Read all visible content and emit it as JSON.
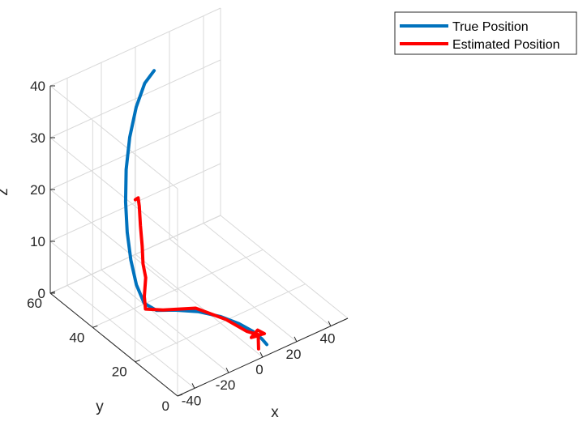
{
  "chart_data": {
    "type": "line3d",
    "xlabel": "x",
    "ylabel": "y",
    "zlabel": "z",
    "xlim": [
      -50,
      50
    ],
    "ylim": [
      0,
      60
    ],
    "zlim": [
      0,
      40
    ],
    "xticks": [
      -40,
      -20,
      0,
      20,
      40
    ],
    "yticks": [
      0,
      20,
      40,
      60
    ],
    "zticks": [
      0,
      10,
      20,
      30,
      40
    ],
    "grid": true,
    "legend_position": "top-right",
    "colors": {
      "true": "#0072BD",
      "estimated": "#FF0000",
      "grid": "#d9d9d9",
      "axis": "#262626"
    },
    "series": [
      {
        "name": "True Position",
        "color": "#0072BD",
        "points": [
          [
            7.4,
            4.0,
            0.0
          ],
          [
            7.0,
            6.0,
            0.5
          ],
          [
            4.7,
            8.4,
            1.5
          ],
          [
            0.4,
            11.5,
            2.6
          ],
          [
            -5.7,
            15.4,
            3.6
          ],
          [
            -13.2,
            19.9,
            4.2
          ],
          [
            -21.0,
            24.6,
            4.1
          ],
          [
            -26.8,
            28.6,
            3.6
          ],
          [
            -30.0,
            31.8,
            4.4
          ],
          [
            -30.6,
            35.0,
            7.0
          ],
          [
            -29.2,
            38.7,
            10.3
          ],
          [
            -26.5,
            42.6,
            14.0
          ],
          [
            -22.6,
            46.5,
            18.0
          ],
          [
            -17.5,
            50.3,
            22.2
          ],
          [
            -11.3,
            53.6,
            26.4
          ],
          [
            -4.0,
            56.4,
            30.2
          ],
          [
            3.5,
            58.4,
            33.0
          ],
          [
            10.5,
            59.6,
            34.0
          ]
        ]
      },
      {
        "name": "Estimated Position",
        "color": "#FF0000",
        "points": [
          [
            2.3,
            3.8,
            0.0
          ],
          [
            3.0,
            4.5,
            2.2
          ],
          [
            3.2,
            7.9,
            0.7
          ],
          [
            4.4,
            5.9,
            2.6
          ],
          [
            7.0,
            4.8,
            1.9
          ],
          [
            6.2,
            6.5,
            1.2
          ],
          [
            2.2,
            9.2,
            1.6
          ],
          [
            -4.2,
            13.9,
            3.3
          ],
          [
            -13.7,
            20.6,
            4.7
          ],
          [
            -24.4,
            27.4,
            3.7
          ],
          [
            -29.6,
            31.5,
            3.3
          ],
          [
            -28.3,
            33.1,
            5.0
          ],
          [
            -25.5,
            34.7,
            7.7
          ],
          [
            -24.7,
            36.6,
            9.6
          ],
          [
            -24.3,
            37.3,
            12.7
          ],
          [
            -24.2,
            38.2,
            16.4
          ],
          [
            -23.9,
            39.0,
            19.8
          ],
          [
            -23.8,
            39.6,
            21.2
          ],
          [
            -26.2,
            39.0,
            21.4
          ]
        ]
      }
    ]
  }
}
